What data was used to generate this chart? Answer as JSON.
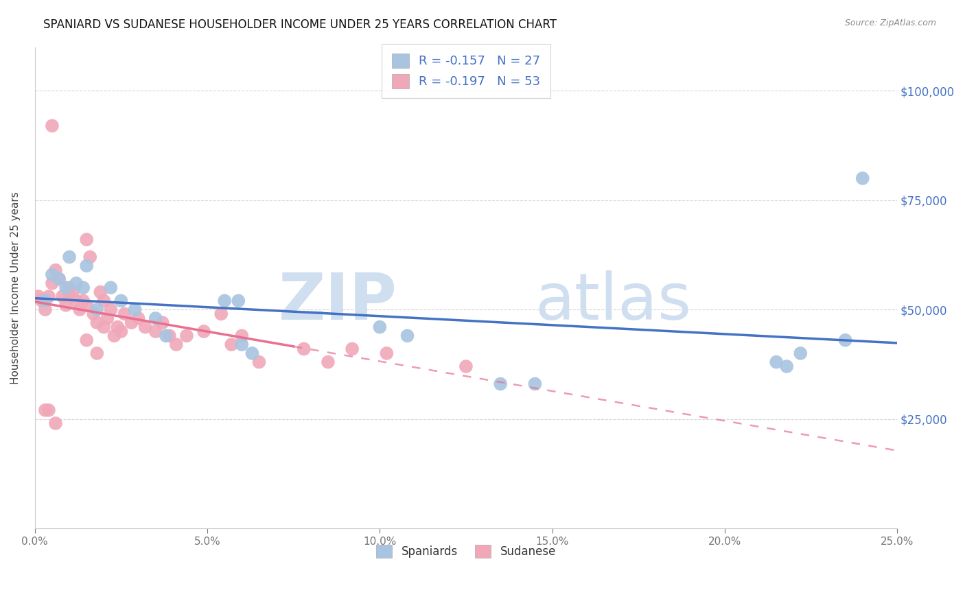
{
  "title": "SPANIARD VS SUDANESE HOUSEHOLDER INCOME UNDER 25 YEARS CORRELATION CHART",
  "source": "Source: ZipAtlas.com",
  "ylabel": "Householder Income Under 25 years",
  "xlabel_ticks": [
    "0.0%",
    "5.0%",
    "10.0%",
    "15.0%",
    "20.0%",
    "25.0%"
  ],
  "xlabel_vals": [
    0.0,
    5.0,
    10.0,
    15.0,
    20.0,
    25.0
  ],
  "ylabel_ticks_right": [
    "$25,000",
    "$50,000",
    "$75,000",
    "$100,000"
  ],
  "ylabel_vals_right": [
    25000,
    50000,
    75000,
    100000
  ],
  "xmin": 0.0,
  "xmax": 25.0,
  "ymin": 0,
  "ymax": 110000,
  "legend_blue_r": "R = ",
  "legend_blue_rval": "-0.157",
  "legend_blue_n": "   N = ",
  "legend_blue_nval": "27",
  "legend_pink_r": "R = ",
  "legend_pink_rval": "-0.197",
  "legend_pink_n": "   N = ",
  "legend_pink_nval": "53",
  "spaniards_color": "#a8c4e0",
  "sudanese_color": "#f0a8b8",
  "trend_blue_color": "#4472c4",
  "trend_pink_color": "#e87090",
  "watermark_zip": "ZIP",
  "watermark_atlas": "atlas",
  "spaniards_x": [
    0.3,
    0.5,
    0.7,
    0.9,
    1.0,
    1.2,
    1.4,
    1.5,
    1.8,
    2.2,
    2.5,
    2.9,
    3.5,
    3.8,
    5.5,
    5.9,
    6.0,
    6.3,
    10.0,
    10.8,
    13.5,
    14.5,
    21.5,
    21.8,
    22.2,
    23.5,
    24.0
  ],
  "spaniards_y": [
    52000,
    58000,
    57000,
    55000,
    62000,
    56000,
    55000,
    60000,
    50000,
    55000,
    52000,
    50000,
    48000,
    44000,
    52000,
    52000,
    42000,
    40000,
    46000,
    44000,
    33000,
    33000,
    38000,
    37000,
    40000,
    43000,
    80000
  ],
  "sudanese_x": [
    0.1,
    0.2,
    0.3,
    0.4,
    0.5,
    0.6,
    0.7,
    0.8,
    0.9,
    1.0,
    1.0,
    1.1,
    1.2,
    1.3,
    1.4,
    1.5,
    1.5,
    1.6,
    1.7,
    1.8,
    1.9,
    2.0,
    2.1,
    2.2,
    2.3,
    2.4,
    2.5,
    2.6,
    2.8,
    3.0,
    3.2,
    3.5,
    3.7,
    3.9,
    4.1,
    4.4,
    4.9,
    5.4,
    5.7,
    6.0,
    6.5,
    7.8,
    8.5,
    9.2,
    10.2,
    12.5,
    1.5,
    1.8,
    2.0,
    0.5,
    0.3,
    0.4,
    0.6
  ],
  "sudanese_y": [
    53000,
    52000,
    50000,
    53000,
    56000,
    59000,
    57000,
    53000,
    51000,
    53000,
    55000,
    54000,
    52000,
    50000,
    52000,
    51000,
    66000,
    62000,
    49000,
    47000,
    54000,
    52000,
    48000,
    50000,
    44000,
    46000,
    45000,
    49000,
    47000,
    48000,
    46000,
    45000,
    47000,
    44000,
    42000,
    44000,
    45000,
    49000,
    42000,
    44000,
    38000,
    41000,
    38000,
    41000,
    40000,
    37000,
    43000,
    40000,
    46000,
    92000,
    27000,
    27000,
    24000
  ]
}
